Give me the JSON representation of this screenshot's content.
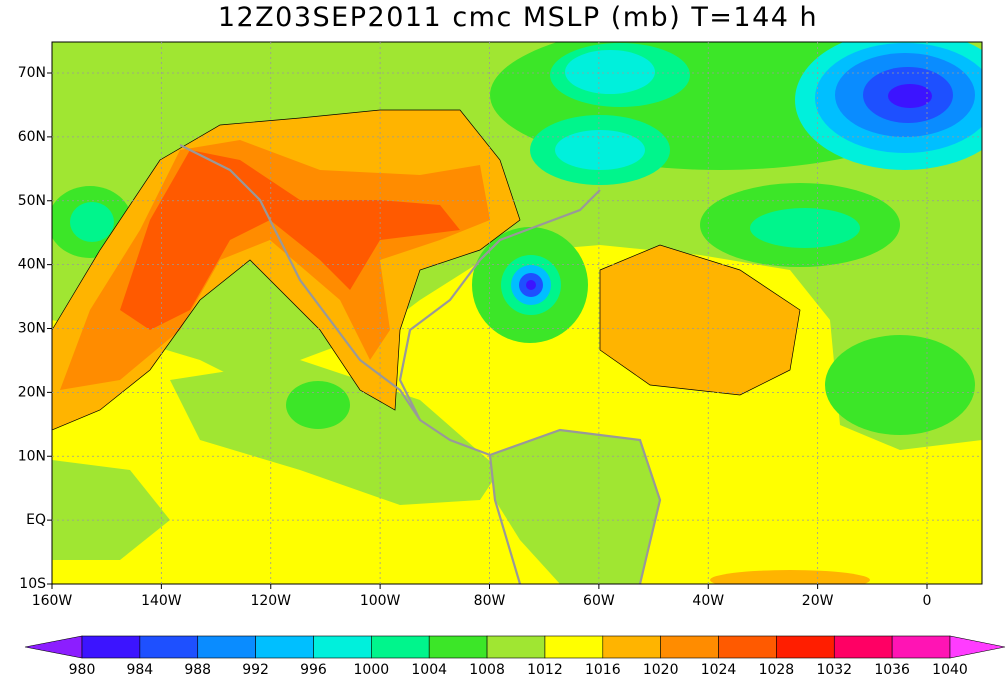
{
  "title": "12Z03SEP2011 cmc MSLP (mb) T=144 h",
  "map": {
    "x_labels": [
      "160W",
      "140W",
      "120W",
      "100W",
      "80W",
      "60W",
      "40W",
      "20W",
      "0"
    ],
    "y_labels": [
      "10S",
      "EQ",
      "10N",
      "20N",
      "30N",
      "40N",
      "50N",
      "60N",
      "70N"
    ]
  },
  "colorbar": {
    "levels": [
      980,
      984,
      988,
      992,
      996,
      1000,
      1004,
      1008,
      1012,
      1016,
      1020,
      1024,
      1028,
      1032,
      1036,
      1040
    ],
    "colors": [
      "#8c1eff",
      "#3c14ff",
      "#1e50ff",
      "#0a8cff",
      "#00bfff",
      "#00f0dc",
      "#00f58c",
      "#3ce628",
      "#a0e632",
      "#ffff00",
      "#ffb400",
      "#ff8c00",
      "#ff5a00",
      "#ff1e00",
      "#ff0064",
      "#ff14b4",
      "#ff3cff"
    ]
  }
}
